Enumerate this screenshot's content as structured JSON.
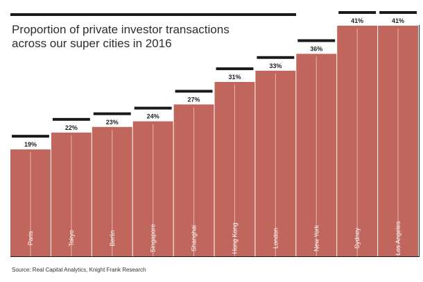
{
  "title_lines": [
    "Proportion of private investor transactions",
    "across our super cities in 2016"
  ],
  "source": "Source: Real Capital Analytics, Knight Frank Research",
  "colors": {
    "bar": "#c1665d",
    "cap": "#1a1a1a",
    "frame": "#1a1a1a",
    "grid_line": "#e6b6b0"
  },
  "chart_data": {
    "type": "bar",
    "title": "Proportion of private investor transactions across our super cities in 2016",
    "categories": [
      "Paris",
      "Tokyo",
      "Berlin",
      "Singapore",
      "Shanghai",
      "Hong Kong",
      "London",
      "New York",
      "Sydney",
      "Los Angeles"
    ],
    "values": [
      19,
      22,
      23,
      24,
      27,
      31,
      33,
      36,
      41,
      41
    ],
    "value_labels": [
      "19%",
      "22%",
      "23%",
      "24%",
      "27%",
      "31%",
      "33%",
      "36%",
      "41%",
      "41%"
    ],
    "unit": "%",
    "xlabel": "",
    "ylabel": "",
    "ylim": [
      0,
      41
    ],
    "grid": false,
    "legend": "none"
  }
}
